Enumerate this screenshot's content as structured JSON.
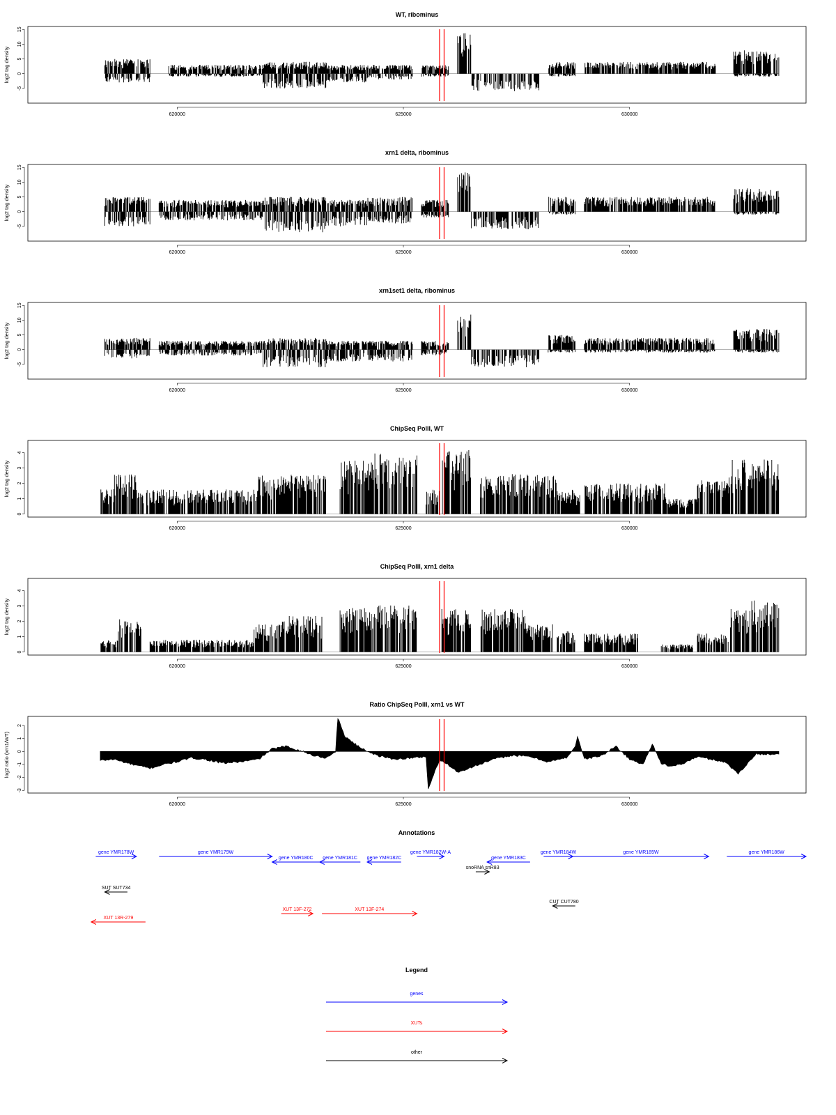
{
  "chart_data": [
    {
      "type": "bar",
      "title": "WT, ribominus",
      "ylabel": "log2 tag density",
      "ylim": [
        -10,
        16
      ],
      "yticks": [
        -5,
        0,
        5,
        10,
        15
      ],
      "xlim": [
        616700,
        633900
      ],
      "xticks": [
        620000,
        625000,
        630000
      ],
      "xtick_labels": [
        "620000",
        "625000",
        "630000"
      ],
      "marker_lines": [
        625800,
        625900
      ],
      "marker_color": "#ff0000",
      "segments": [
        {
          "x": [
            618400,
            619400
          ],
          "pos": 5,
          "neg": -3
        },
        {
          "x": [
            619800,
            621900
          ],
          "pos": 3,
          "neg": -1
        },
        {
          "x": [
            621900,
            623300
          ],
          "pos": 4,
          "neg": -5
        },
        {
          "x": [
            623300,
            624200
          ],
          "pos": 3,
          "neg": -3
        },
        {
          "x": [
            624200,
            625200
          ],
          "pos": 3,
          "neg": -2
        },
        {
          "x": [
            625400,
            626000
          ],
          "pos": 3,
          "neg": -1
        },
        {
          "x": [
            626200,
            626500
          ],
          "pos": 14,
          "neg": 0
        },
        {
          "x": [
            626500,
            628000
          ],
          "pos": 0,
          "neg": -6
        },
        {
          "x": [
            628200,
            628800
          ],
          "pos": 4,
          "neg": -1
        },
        {
          "x": [
            629000,
            631900
          ],
          "pos": 4,
          "neg": 0
        },
        {
          "x": [
            632300,
            633300
          ],
          "pos": 8,
          "neg": -1
        }
      ]
    },
    {
      "type": "bar",
      "title": "xrn1 delta, ribominus",
      "ylabel": "log2 tag density",
      "ylim": [
        -10,
        16
      ],
      "yticks": [
        -5,
        0,
        5,
        10,
        15
      ],
      "xlim": [
        616700,
        633900
      ],
      "xticks": [
        620000,
        625000,
        630000
      ],
      "xtick_labels": [
        "620000",
        "625000",
        "630000"
      ],
      "marker_lines": [
        625800,
        625900
      ],
      "marker_color": "#ff0000",
      "segments": [
        {
          "x": [
            618400,
            619400
          ],
          "pos": 5,
          "neg": -5
        },
        {
          "x": [
            619600,
            621900
          ],
          "pos": 4,
          "neg": -3
        },
        {
          "x": [
            621900,
            623300
          ],
          "pos": 5,
          "neg": -7
        },
        {
          "x": [
            623300,
            624200
          ],
          "pos": 4,
          "neg": -5
        },
        {
          "x": [
            624200,
            625200
          ],
          "pos": 5,
          "neg": -4
        },
        {
          "x": [
            625400,
            626000
          ],
          "pos": 4,
          "neg": -2
        },
        {
          "x": [
            626200,
            626500
          ],
          "pos": 14,
          "neg": 0
        },
        {
          "x": [
            626500,
            628000
          ],
          "pos": 0,
          "neg": -6
        },
        {
          "x": [
            628200,
            628800
          ],
          "pos": 5,
          "neg": -1
        },
        {
          "x": [
            629000,
            631900
          ],
          "pos": 5,
          "neg": 0
        },
        {
          "x": [
            632300,
            633300
          ],
          "pos": 8,
          "neg": -1
        }
      ]
    },
    {
      "type": "bar",
      "title": "xrn1set1 delta, ribominus",
      "ylabel": "log2 tag density",
      "ylim": [
        -10,
        16
      ],
      "yticks": [
        -5,
        0,
        5,
        10,
        15
      ],
      "xlim": [
        616700,
        633900
      ],
      "xticks": [
        620000,
        625000,
        630000
      ],
      "xtick_labels": [
        "620000",
        "625000",
        "630000"
      ],
      "marker_lines": [
        625800,
        625900
      ],
      "marker_color": "#ff0000",
      "segments": [
        {
          "x": [
            618400,
            619400
          ],
          "pos": 4,
          "neg": -3
        },
        {
          "x": [
            619600,
            621900
          ],
          "pos": 3,
          "neg": -2
        },
        {
          "x": [
            621900,
            623300
          ],
          "pos": 4,
          "neg": -6
        },
        {
          "x": [
            623300,
            624200
          ],
          "pos": 3,
          "neg": -4
        },
        {
          "x": [
            624200,
            625200
          ],
          "pos": 3,
          "neg": -4
        },
        {
          "x": [
            625400,
            626000
          ],
          "pos": 3,
          "neg": -2
        },
        {
          "x": [
            626200,
            626500
          ],
          "pos": 12,
          "neg": 0
        },
        {
          "x": [
            626500,
            628000
          ],
          "pos": 0,
          "neg": -6
        },
        {
          "x": [
            628200,
            628800
          ],
          "pos": 5,
          "neg": -1
        },
        {
          "x": [
            629000,
            631900
          ],
          "pos": 4,
          "neg": -1
        },
        {
          "x": [
            632300,
            633300
          ],
          "pos": 7,
          "neg": -1
        }
      ]
    },
    {
      "type": "bar",
      "title": "ChipSeq PolII, WT",
      "ylabel": "log2 tag density",
      "ylim": [
        -0.2,
        4.8
      ],
      "yticks": [
        0,
        1,
        2,
        3,
        4
      ],
      "xlim": [
        616700,
        633900
      ],
      "xticks": [
        620000,
        625000,
        630000
      ],
      "xtick_labels": [
        "620000",
        "625000",
        "630000"
      ],
      "marker_lines": [
        625800,
        625900
      ],
      "marker_color": "#ff0000",
      "segments": [
        {
          "x": [
            618300,
            618600
          ],
          "pos": 1.6,
          "neg": 0
        },
        {
          "x": [
            618600,
            619100
          ],
          "pos": 2.6,
          "neg": 0
        },
        {
          "x": [
            619100,
            621800
          ],
          "pos": 1.6,
          "neg": 0
        },
        {
          "x": [
            621800,
            623300
          ],
          "pos": 2.6,
          "neg": 0
        },
        {
          "x": [
            623600,
            624300
          ],
          "pos": 3.5,
          "neg": 0
        },
        {
          "x": [
            624300,
            625300
          ],
          "pos": 4.0,
          "neg": 0
        },
        {
          "x": [
            625500,
            625800
          ],
          "pos": 1.6,
          "neg": 0
        },
        {
          "x": [
            625850,
            626500
          ],
          "pos": 4.2,
          "neg": 0
        },
        {
          "x": [
            626700,
            628400
          ],
          "pos": 2.6,
          "neg": 0
        },
        {
          "x": [
            628400,
            628900
          ],
          "pos": 1.6,
          "neg": 0
        },
        {
          "x": [
            629000,
            630800
          ],
          "pos": 2.0,
          "neg": 0
        },
        {
          "x": [
            630800,
            631500
          ],
          "pos": 1.0,
          "neg": 0
        },
        {
          "x": [
            631500,
            632200
          ],
          "pos": 2.2,
          "neg": 0
        },
        {
          "x": [
            632200,
            633300
          ],
          "pos": 3.6,
          "neg": 0
        }
      ]
    },
    {
      "type": "bar",
      "title": "ChipSeq PolII, xrn1 delta",
      "ylabel": "log2 tag density",
      "ylim": [
        -0.2,
        4.8
      ],
      "yticks": [
        0,
        1,
        2,
        3,
        4
      ],
      "xlim": [
        616700,
        633900
      ],
      "xticks": [
        620000,
        625000,
        630000
      ],
      "xtick_labels": [
        "620000",
        "625000",
        "630000"
      ],
      "marker_lines": [
        625800,
        625900
      ],
      "marker_color": "#ff0000",
      "segments": [
        {
          "x": [
            618300,
            618700
          ],
          "pos": 0.8,
          "neg": 0
        },
        {
          "x": [
            618700,
            619200
          ],
          "pos": 2.2,
          "neg": 0
        },
        {
          "x": [
            619400,
            621700
          ],
          "pos": 0.8,
          "neg": 0
        },
        {
          "x": [
            621700,
            622200
          ],
          "pos": 1.8,
          "neg": 0
        },
        {
          "x": [
            622200,
            623200
          ],
          "pos": 2.4,
          "neg": 0
        },
        {
          "x": [
            623600,
            624400
          ],
          "pos": 3.0,
          "neg": 0
        },
        {
          "x": [
            624400,
            625300
          ],
          "pos": 3.1,
          "neg": 0
        },
        {
          "x": [
            625850,
            626500
          ],
          "pos": 2.8,
          "neg": 0
        },
        {
          "x": [
            626700,
            627700
          ],
          "pos": 2.8,
          "neg": 0
        },
        {
          "x": [
            627700,
            628300
          ],
          "pos": 1.8,
          "neg": 0
        },
        {
          "x": [
            628400,
            628800
          ],
          "pos": 1.4,
          "neg": 0
        },
        {
          "x": [
            629000,
            630200
          ],
          "pos": 1.2,
          "neg": 0
        },
        {
          "x": [
            630700,
            631400
          ],
          "pos": 0.5,
          "neg": 0
        },
        {
          "x": [
            631500,
            632200
          ],
          "pos": 1.2,
          "neg": 0
        },
        {
          "x": [
            632200,
            632700
          ],
          "pos": 2.8,
          "neg": 0
        },
        {
          "x": [
            632700,
            633300
          ],
          "pos": 3.4,
          "neg": 0
        }
      ]
    },
    {
      "type": "area",
      "title": "Ratio ChipSeq PolII, xrn1 vs WT",
      "ylabel": "log2 ratio (xrn1/WT)",
      "ylim": [
        -3.2,
        2.7
      ],
      "yticks": [
        -3,
        -2,
        -1,
        0,
        1,
        2
      ],
      "xlim": [
        616700,
        633900
      ],
      "xticks": [
        620000,
        625000,
        630000
      ],
      "xtick_labels": [
        "620000",
        "625000",
        "630000"
      ],
      "marker_lines": [
        625800,
        625900
      ],
      "marker_color": "#ff0000",
      "x": [
        618300,
        618600,
        619000,
        619400,
        619700,
        620000,
        620300,
        620600,
        621000,
        621400,
        621800,
        622100,
        622400,
        622700,
        623000,
        623300,
        623500,
        623550,
        623700,
        624000,
        624400,
        624800,
        625200,
        625500,
        625550,
        625700,
        625800,
        625950,
        626200,
        626600,
        627000,
        627400,
        627800,
        628200,
        628600,
        628800,
        628850,
        629000,
        629400,
        629700,
        630000,
        630300,
        630500,
        630700,
        630900,
        631200,
        631500,
        631800,
        632100,
        632400,
        632800,
        633300
      ],
      "y": [
        -0.7,
        -0.6,
        -1.0,
        -1.3,
        -1.0,
        -0.8,
        -0.5,
        -0.6,
        -0.9,
        -0.8,
        -0.6,
        0.2,
        0.4,
        0.1,
        -0.3,
        -0.5,
        0.0,
        2.6,
        1.2,
        0.4,
        -0.3,
        -0.6,
        -0.5,
        -0.4,
        -2.9,
        -1.5,
        -0.7,
        -0.9,
        -1.6,
        -1.1,
        -0.6,
        -0.3,
        -0.4,
        -0.8,
        -0.5,
        0.4,
        1.2,
        -0.6,
        -0.3,
        0.4,
        -0.6,
        -1.0,
        0.6,
        -0.9,
        -1.2,
        -0.9,
        -0.4,
        -0.6,
        -0.8,
        -1.7,
        -0.2,
        -0.2
      ]
    }
  ],
  "annotations": {
    "title": "Annotations",
    "features": [
      {
        "label": "gene YMR178W",
        "start": 618200,
        "end": 619100,
        "color": "#0000ff",
        "dir": "right",
        "row": 0
      },
      {
        "label": "gene YMR179W",
        "start": 619600,
        "end": 622100,
        "color": "#0000ff",
        "dir": "right",
        "row": 0
      },
      {
        "label": "gene YMR180C",
        "start": 622100,
        "end": 623150,
        "color": "#0000ff",
        "dir": "left",
        "row": 1
      },
      {
        "label": "gene YMR181C",
        "start": 623150,
        "end": 624050,
        "color": "#0000ff",
        "dir": "left",
        "row": 1
      },
      {
        "label": "gene YMR182C",
        "start": 624200,
        "end": 624950,
        "color": "#0000ff",
        "dir": "left",
        "row": 1
      },
      {
        "label": "gene YMR182W-A",
        "start": 625300,
        "end": 625900,
        "color": "#0000ff",
        "dir": "right",
        "row": 0
      },
      {
        "label": "snoRNA snR83",
        "start": 626600,
        "end": 626900,
        "color": "#000000",
        "dir": "right",
        "row": 2
      },
      {
        "label": "gene YMR183C",
        "start": 626850,
        "end": 627800,
        "color": "#0000ff",
        "dir": "left",
        "row": 1
      },
      {
        "label": "gene YMR184W",
        "start": 628100,
        "end": 628750,
        "color": "#0000ff",
        "dir": "right",
        "row": 0
      },
      {
        "label": "gene YMR185W",
        "start": 628750,
        "end": 631750,
        "color": "#0000ff",
        "dir": "right",
        "row": 0
      },
      {
        "label": "gene YMR186W",
        "start": 632150,
        "end": 633900,
        "color": "#0000ff",
        "dir": "right",
        "row": 0
      },
      {
        "label": "SUT SUT734",
        "start": 618400,
        "end": 618900,
        "color": "#000000",
        "dir": "left",
        "row": 3
      },
      {
        "label": "CUT CUT780",
        "start": 628300,
        "end": 628800,
        "color": "#000000",
        "dir": "left",
        "row": 4
      },
      {
        "label": "XUT 13F-272",
        "start": 622300,
        "end": 623000,
        "color": "#ff0000",
        "dir": "right",
        "row": 5
      },
      {
        "label": "XUT 13F-274",
        "start": 623200,
        "end": 625300,
        "color": "#ff0000",
        "dir": "right",
        "row": 5
      },
      {
        "label": "XUT 13R-279",
        "start": 618100,
        "end": 619300,
        "color": "#ff0000",
        "dir": "left",
        "row": 6
      }
    ]
  },
  "legend": {
    "title": "Legend",
    "items": [
      {
        "label": "genes",
        "color": "#0000ff"
      },
      {
        "label": "XUTs",
        "color": "#ff0000"
      },
      {
        "label": "other",
        "color": "#000000"
      }
    ]
  }
}
